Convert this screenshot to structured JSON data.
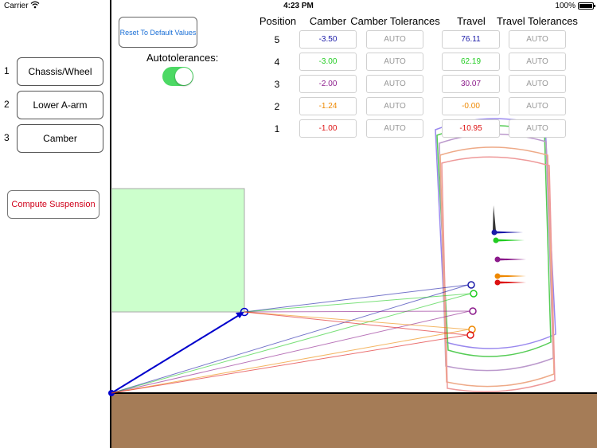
{
  "status_bar": {
    "carrier": "Carrier",
    "time": "4:23 PM",
    "battery": "100%"
  },
  "nav": {
    "items": [
      {
        "num": "1",
        "label": "Chassis/Wheel"
      },
      {
        "num": "2",
        "label": "Lower A-arm"
      },
      {
        "num": "3",
        "label": "Camber"
      }
    ],
    "compute_label": "Compute Suspension"
  },
  "controls": {
    "reset_label": "Reset To Default Values",
    "autotolerances_label": "Autotolerances:",
    "autotolerances_on": true
  },
  "table": {
    "headers": {
      "position": "Position",
      "camber": "Camber",
      "camber_tol": "Camber Tolerances",
      "travel": "Travel",
      "travel_tol": "Travel Tolerances"
    },
    "rows": [
      {
        "position": "5",
        "camber": "-3.50",
        "camber_tol": "AUTO",
        "travel": "76.11",
        "travel_tol": "AUTO",
        "color": "#1a1aa8"
      },
      {
        "position": "4",
        "camber": "-3.00",
        "camber_tol": "AUTO",
        "travel": "62.19",
        "travel_tol": "AUTO",
        "color": "#22cc22"
      },
      {
        "position": "3",
        "camber": "-2.00",
        "camber_tol": "AUTO",
        "travel": "30.07",
        "travel_tol": "AUTO",
        "color": "#8b1a8b"
      },
      {
        "position": "2",
        "camber": "-1.24",
        "camber_tol": "AUTO",
        "travel": "-0.00",
        "travel_tol": "AUTO",
        "color": "#ee8800"
      },
      {
        "position": "1",
        "camber": "-1.00",
        "camber_tol": "AUTO",
        "travel": "-10.95",
        "travel_tol": "AUTO",
        "color": "#dd1111"
      }
    ]
  },
  "colors": {
    "ground": "#a57c57",
    "chassis_fill": "#ccffcc",
    "lower_arm": "#0000cc",
    "toggle_on": "#4cd964",
    "reset_text": "#1a6fd6",
    "compute_text": "#d0021b"
  }
}
